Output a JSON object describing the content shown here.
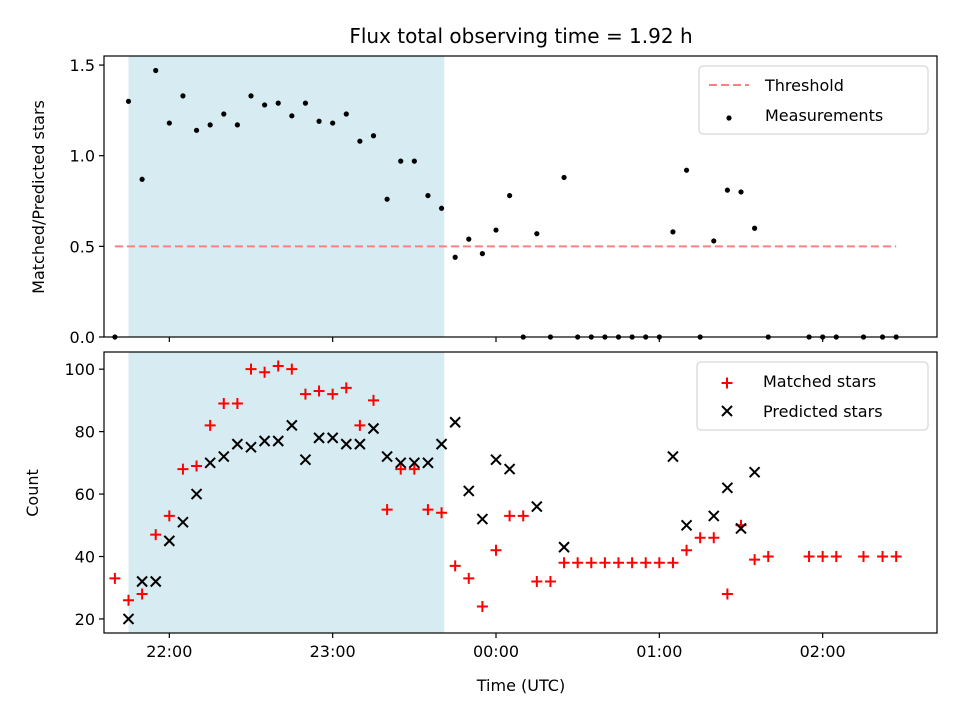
{
  "chart_data": [
    {
      "type": "scatter",
      "title": "Flux total observing time = 1.92 h",
      "ylabel": "Matched/Predicted stars",
      "xlabel": "",
      "xlim": [
        "21:36",
        "02:42"
      ],
      "ylim": [
        0,
        1.55
      ],
      "yticks": [
        0.0,
        0.5,
        1.0,
        1.5
      ],
      "ytick_labels": [
        "0.0",
        "0.5",
        "1.0",
        "1.5"
      ],
      "shaded_span": [
        "21:45",
        "23:41"
      ],
      "shade_color": "#add8e6",
      "threshold": {
        "name": "Threshold",
        "value": 0.5,
        "x_range": [
          "21:40",
          "02:27"
        ],
        "color": "#ff7f7f"
      },
      "series": [
        {
          "name": "Measurements",
          "marker": "dot",
          "color": "#000000",
          "x": [
            "21:40",
            "21:45",
            "21:50",
            "21:55",
            "22:00",
            "22:05",
            "22:10",
            "22:15",
            "22:20",
            "22:25",
            "22:30",
            "22:35",
            "22:40",
            "22:45",
            "22:50",
            "22:55",
            "23:00",
            "23:05",
            "23:10",
            "23:15",
            "23:20",
            "23:25",
            "23:30",
            "23:35",
            "23:40",
            "23:45",
            "23:50",
            "23:55",
            "00:00",
            "00:05",
            "00:10",
            "00:15",
            "00:20",
            "00:25",
            "00:30",
            "00:35",
            "00:40",
            "00:45",
            "00:50",
            "00:55",
            "01:00",
            "01:05",
            "01:10",
            "01:15",
            "01:20",
            "01:25",
            "01:30",
            "01:35",
            "01:40",
            "01:55",
            "02:00",
            "02:05",
            "02:15",
            "02:22",
            "02:27"
          ],
          "values": [
            0,
            1.3,
            0.87,
            1.47,
            1.18,
            1.33,
            1.14,
            1.17,
            1.23,
            1.17,
            1.33,
            1.28,
            1.29,
            1.22,
            1.29,
            1.19,
            1.18,
            1.23,
            1.08,
            1.11,
            0.76,
            0.97,
            0.97,
            0.78,
            0.71,
            0.44,
            0.54,
            0.46,
            0.59,
            0.78,
            0,
            0.57,
            0,
            0.88,
            0,
            0,
            0,
            0,
            0,
            0,
            0,
            0.58,
            0.92,
            0,
            0.53,
            0.81,
            0.8,
            0.6,
            0,
            0,
            0,
            0,
            0,
            0,
            0
          ]
        }
      ],
      "legend": {
        "position": "top-right",
        "entries": [
          "Threshold",
          "Measurements"
        ]
      }
    },
    {
      "type": "scatter",
      "title": "",
      "ylabel": "Count",
      "xlabel": "Time (UTC)",
      "xlim": [
        "21:36",
        "02:42"
      ],
      "ylim": [
        15.5,
        105.5
      ],
      "yticks": [
        20,
        40,
        60,
        80,
        100
      ],
      "ytick_labels": [
        "20",
        "40",
        "60",
        "80",
        "100"
      ],
      "xticks": [
        "22:00",
        "23:00",
        "00:00",
        "01:00",
        "02:00"
      ],
      "shaded_span": [
        "21:45",
        "23:41"
      ],
      "shade_color": "#add8e6",
      "series": [
        {
          "name": "Matched stars",
          "marker": "plus",
          "color": "#ff0000",
          "x": [
            "21:40",
            "21:45",
            "21:50",
            "21:55",
            "22:00",
            "22:05",
            "22:10",
            "22:15",
            "22:20",
            "22:25",
            "22:30",
            "22:35",
            "22:40",
            "22:45",
            "22:50",
            "22:55",
            "23:00",
            "23:05",
            "23:10",
            "23:15",
            "23:20",
            "23:25",
            "23:30",
            "23:35",
            "23:40",
            "23:45",
            "23:50",
            "23:55",
            "00:00",
            "00:05",
            "00:10",
            "00:15",
            "00:20",
            "00:25",
            "00:30",
            "00:35",
            "00:40",
            "00:45",
            "00:50",
            "00:55",
            "01:00",
            "01:05",
            "01:10",
            "01:15",
            "01:20",
            "01:25",
            "01:30",
            "01:35",
            "01:40",
            "01:55",
            "02:00",
            "02:05",
            "02:15",
            "02:22",
            "02:27"
          ],
          "values": [
            33,
            26,
            28,
            47,
            53,
            68,
            69,
            82,
            89,
            89,
            100,
            99,
            101,
            100,
            92,
            93,
            92,
            94,
            82,
            90,
            55,
            68,
            68,
            55,
            54,
            37,
            33,
            24,
            42,
            53,
            53,
            32,
            32,
            38,
            38,
            38,
            38,
            38,
            38,
            38,
            38,
            38,
            42,
            46,
            46,
            28,
            50,
            39,
            40,
            40,
            40,
            40,
            40,
            40,
            40
          ]
        },
        {
          "name": "Predicted stars",
          "marker": "x",
          "color": "#000000",
          "x": [
            "21:45",
            "21:50",
            "21:55",
            "22:00",
            "22:05",
            "22:10",
            "22:15",
            "22:20",
            "22:25",
            "22:30",
            "22:35",
            "22:40",
            "22:45",
            "22:50",
            "22:55",
            "23:00",
            "23:05",
            "23:10",
            "23:15",
            "23:20",
            "23:25",
            "23:30",
            "23:35",
            "23:40",
            "23:45",
            "23:50",
            "23:55",
            "00:00",
            "00:05",
            "00:15",
            "00:25",
            "01:05",
            "01:10",
            "01:20",
            "01:25",
            "01:30",
            "01:35"
          ],
          "values": [
            20,
            32,
            32,
            45,
            51,
            60,
            70,
            72,
            76,
            75,
            77,
            77,
            82,
            71,
            78,
            78,
            76,
            76,
            81,
            72,
            70,
            70,
            70,
            76,
            83,
            61,
            52,
            71,
            68,
            56,
            43,
            72,
            50,
            53,
            62,
            49,
            67
          ]
        }
      ],
      "legend": {
        "position": "top-right",
        "entries": [
          "Matched stars",
          "Predicted stars"
        ]
      }
    }
  ]
}
